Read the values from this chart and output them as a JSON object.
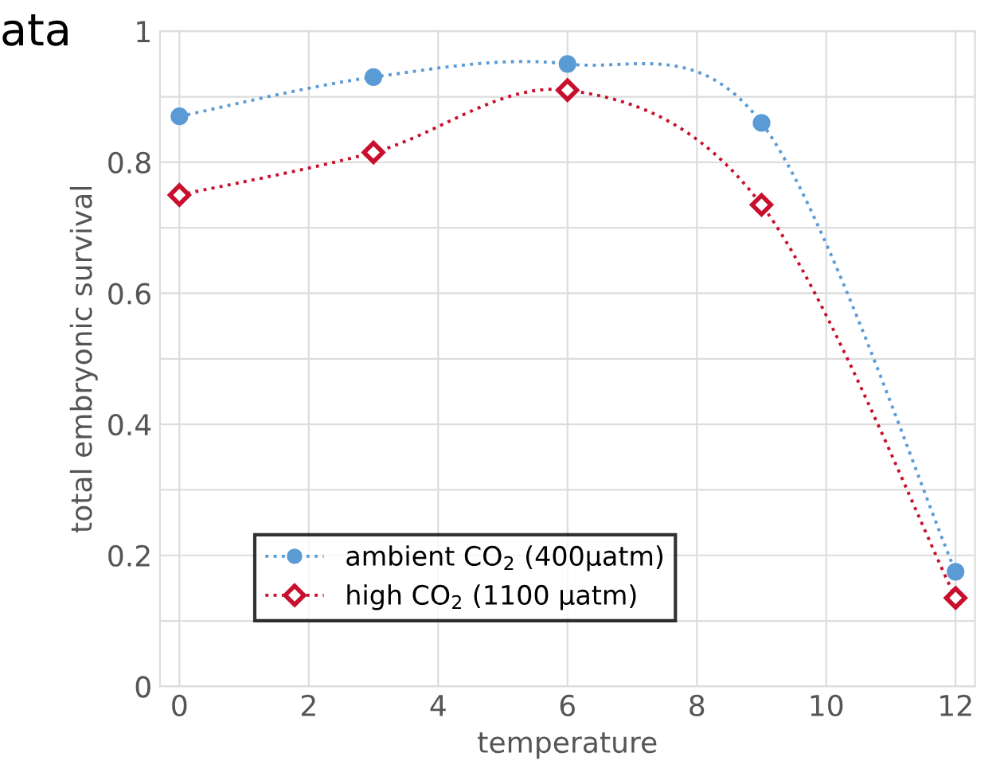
{
  "chart_data": {
    "type": "line",
    "xlabel": "temperature",
    "ylabel": "total embryonic survival",
    "annotations": [
      "ata"
    ],
    "x": [
      0,
      3,
      6,
      9,
      12
    ],
    "series": [
      {
        "name": "ambient CO$_{2}$ (400µatm)",
        "color": "#5b9bd5",
        "marker": "circle",
        "values": [
          0.87,
          0.93,
          0.95,
          0.86,
          0.175
        ]
      },
      {
        "name": "high CO$_{2}$ (1100 µatm)",
        "color": "#c8102e",
        "marker": "diamond",
        "values": [
          0.75,
          0.815,
          0.91,
          0.735,
          0.135
        ]
      }
    ],
    "xlim": [
      -0.3,
      12.3
    ],
    "xticks": [
      0,
      2,
      4,
      6,
      8,
      10,
      12
    ],
    "ylim": [
      0,
      1
    ],
    "yticks": [
      0,
      {
        "value": 0.1,
        "label": null
      },
      0.2,
      {
        "value": 0.3,
        "label": null
      },
      0.4,
      {
        "value": 0.5,
        "label": null
      },
      0.6,
      {
        "value": 0.7,
        "label": null
      },
      0.8,
      {
        "value": 0.9,
        "label": null
      },
      1
    ],
    "grid": true,
    "legend": "bottom left",
    "line_style": "dotted"
  }
}
